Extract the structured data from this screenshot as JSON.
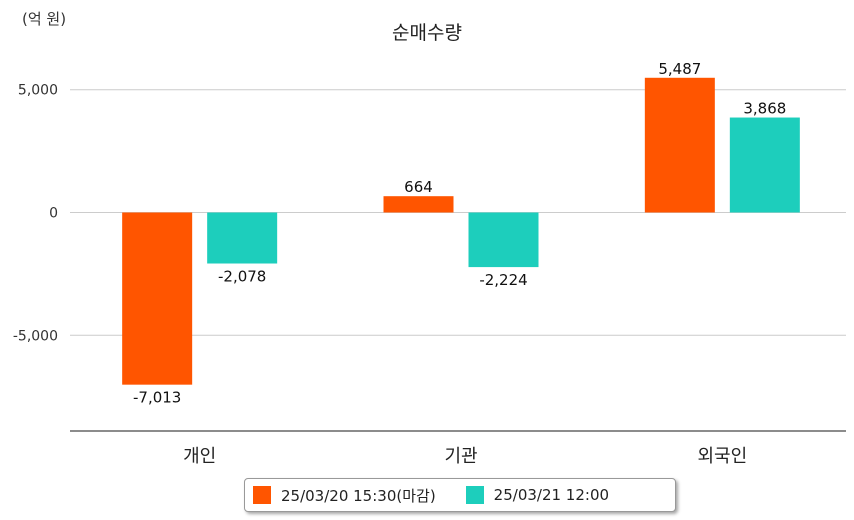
{
  "unit_label": "(억 원)",
  "chart_data": {
    "type": "bar",
    "title": "순매수량",
    "categories": [
      "개인",
      "기관",
      "외국인"
    ],
    "series": [
      {
        "name": "25/03/20 15:30(마감)",
        "values": [
          -7013,
          664,
          5487
        ],
        "color": "#FF5500"
      },
      {
        "name": "25/03/21 12:00",
        "values": [
          -2078,
          -2224,
          3868
        ],
        "color": "#1DCEBC"
      }
    ],
    "data_labels": [
      [
        "-7,013",
        "664",
        "5,487"
      ],
      [
        "-2,078",
        "-2,224",
        "3,868"
      ]
    ],
    "yticks": [
      5000,
      0,
      -5000
    ],
    "ytick_labels": [
      "5,000",
      "0",
      "-5,000"
    ],
    "ylim": [
      -8900,
      6700
    ],
    "grid": true,
    "legend_position": "bottom"
  }
}
